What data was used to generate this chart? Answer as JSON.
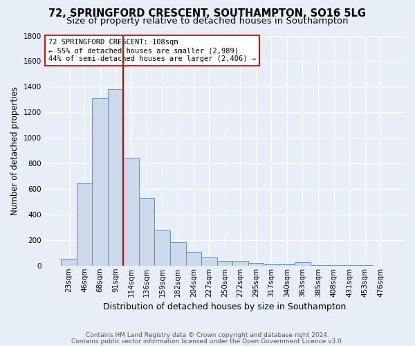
{
  "title": "72, SPRINGFORD CRESCENT, SOUTHAMPTON, SO16 5LG",
  "subtitle": "Size of property relative to detached houses in Southampton",
  "xlabel": "Distribution of detached houses by size in Southampton",
  "ylabel": "Number of detached properties",
  "footnote1": "Contains HM Land Registry data © Crown copyright and database right 2024.",
  "footnote2": "Contains public sector information licensed under the Open Government Licence v3.0.",
  "annotation_line1": "72 SPRINGFORD CRESCENT: 108sqm",
  "annotation_line2": "← 55% of detached houses are smaller (2,989)",
  "annotation_line3": "44% of semi-detached houses are larger (2,406) →",
  "bar_categories": [
    "23sqm",
    "46sqm",
    "68sqm",
    "91sqm",
    "114sqm",
    "136sqm",
    "159sqm",
    "182sqm",
    "204sqm",
    "227sqm",
    "250sqm",
    "272sqm",
    "295sqm",
    "317sqm",
    "340sqm",
    "363sqm",
    "385sqm",
    "408sqm",
    "431sqm",
    "453sqm",
    "476sqm"
  ],
  "bar_values": [
    55,
    645,
    1310,
    1380,
    845,
    530,
    275,
    185,
    105,
    65,
    35,
    35,
    20,
    10,
    10,
    25,
    5,
    5,
    2,
    2,
    1
  ],
  "bar_color": "#ccd9ea",
  "bar_edge_color": "#6090c0",
  "vline_color": "#cc0000",
  "background_color": "#e8eef8",
  "plot_bg_color": "#e8eef8",
  "grid_color": "#ffffff",
  "ylim": [
    0,
    1800
  ],
  "title_fontsize": 10.5,
  "subtitle_fontsize": 9.5,
  "axis_label_fontsize": 9,
  "tick_fontsize": 7.5,
  "ylabel_fontsize": 8.5,
  "footnote_fontsize": 6.5
}
